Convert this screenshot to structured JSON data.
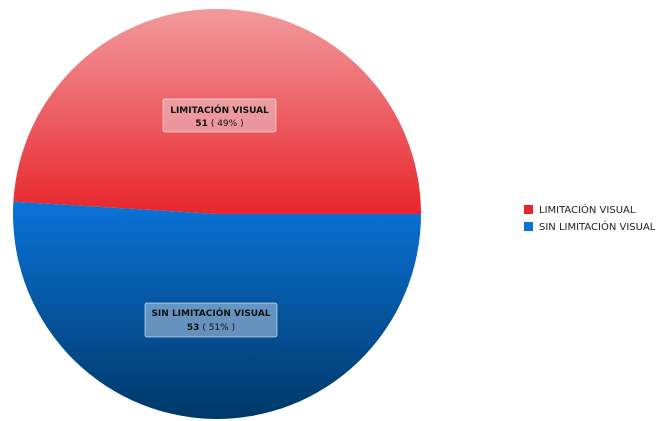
{
  "chart_data": {
    "type": "pie",
    "title": "",
    "legend_position": "right",
    "slices": [
      {
        "label": "LIMITACIÓN VISUAL",
        "value": 51,
        "percent_text": "49%",
        "color": "#e8262d",
        "color_light": "#f19a9d"
      },
      {
        "label": "SIN LIMITACIÓN VISUAL",
        "value": 53,
        "percent_text": "51%",
        "color": "#0a73d8",
        "color_dark": "#003868"
      }
    ]
  }
}
